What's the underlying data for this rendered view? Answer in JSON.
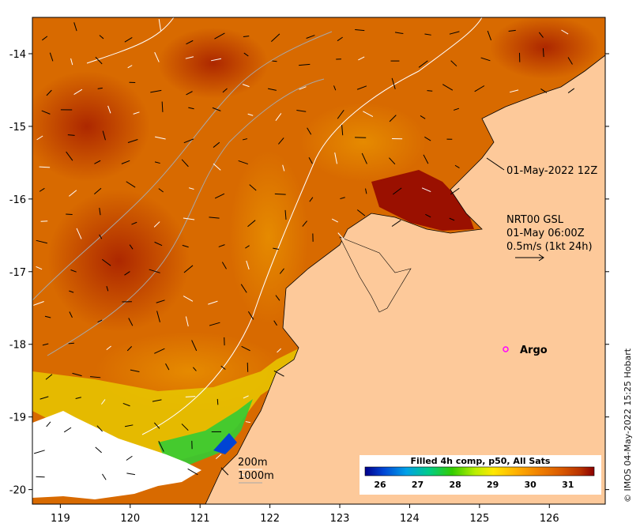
{
  "map": {
    "x_ticks": [
      "119",
      "120",
      "121",
      "122",
      "123",
      "124",
      "125",
      "126"
    ],
    "y_ticks": [
      "-14",
      "-15",
      "-16",
      "-17",
      "-18",
      "-19",
      "-20"
    ],
    "x_range": [
      118.6,
      126.8
    ],
    "y_range": [
      -20.2,
      -13.5
    ],
    "date_label": "01-May-2022 12Z",
    "wind_title": "NRT00 GSL",
    "wind_time": "01-May 06:00Z",
    "wind_scale": "0.5m/s (1kt 24h)",
    "argo_label": "Argo",
    "depth_200": "200m",
    "depth_1000": "1000m",
    "colorbar_title": "Filled 4h comp, p50, All Sats",
    "colorbar_ticks": [
      "26",
      "27",
      "28",
      "29",
      "30",
      "31"
    ],
    "colors": {
      "land": "#fdc99a",
      "no_data": "#ffffff",
      "argo_marker": "#ff00ff",
      "sst_scale": [
        "#00008b",
        "#0044d4",
        "#00a0e8",
        "#00cc88",
        "#33cc00",
        "#b8ee00",
        "#ffe800",
        "#ffb000",
        "#f08000",
        "#d85800",
        "#b83200",
        "#8b0000"
      ]
    }
  },
  "credit": "© IMOS 04-May-2022 15:25 Hobart"
}
